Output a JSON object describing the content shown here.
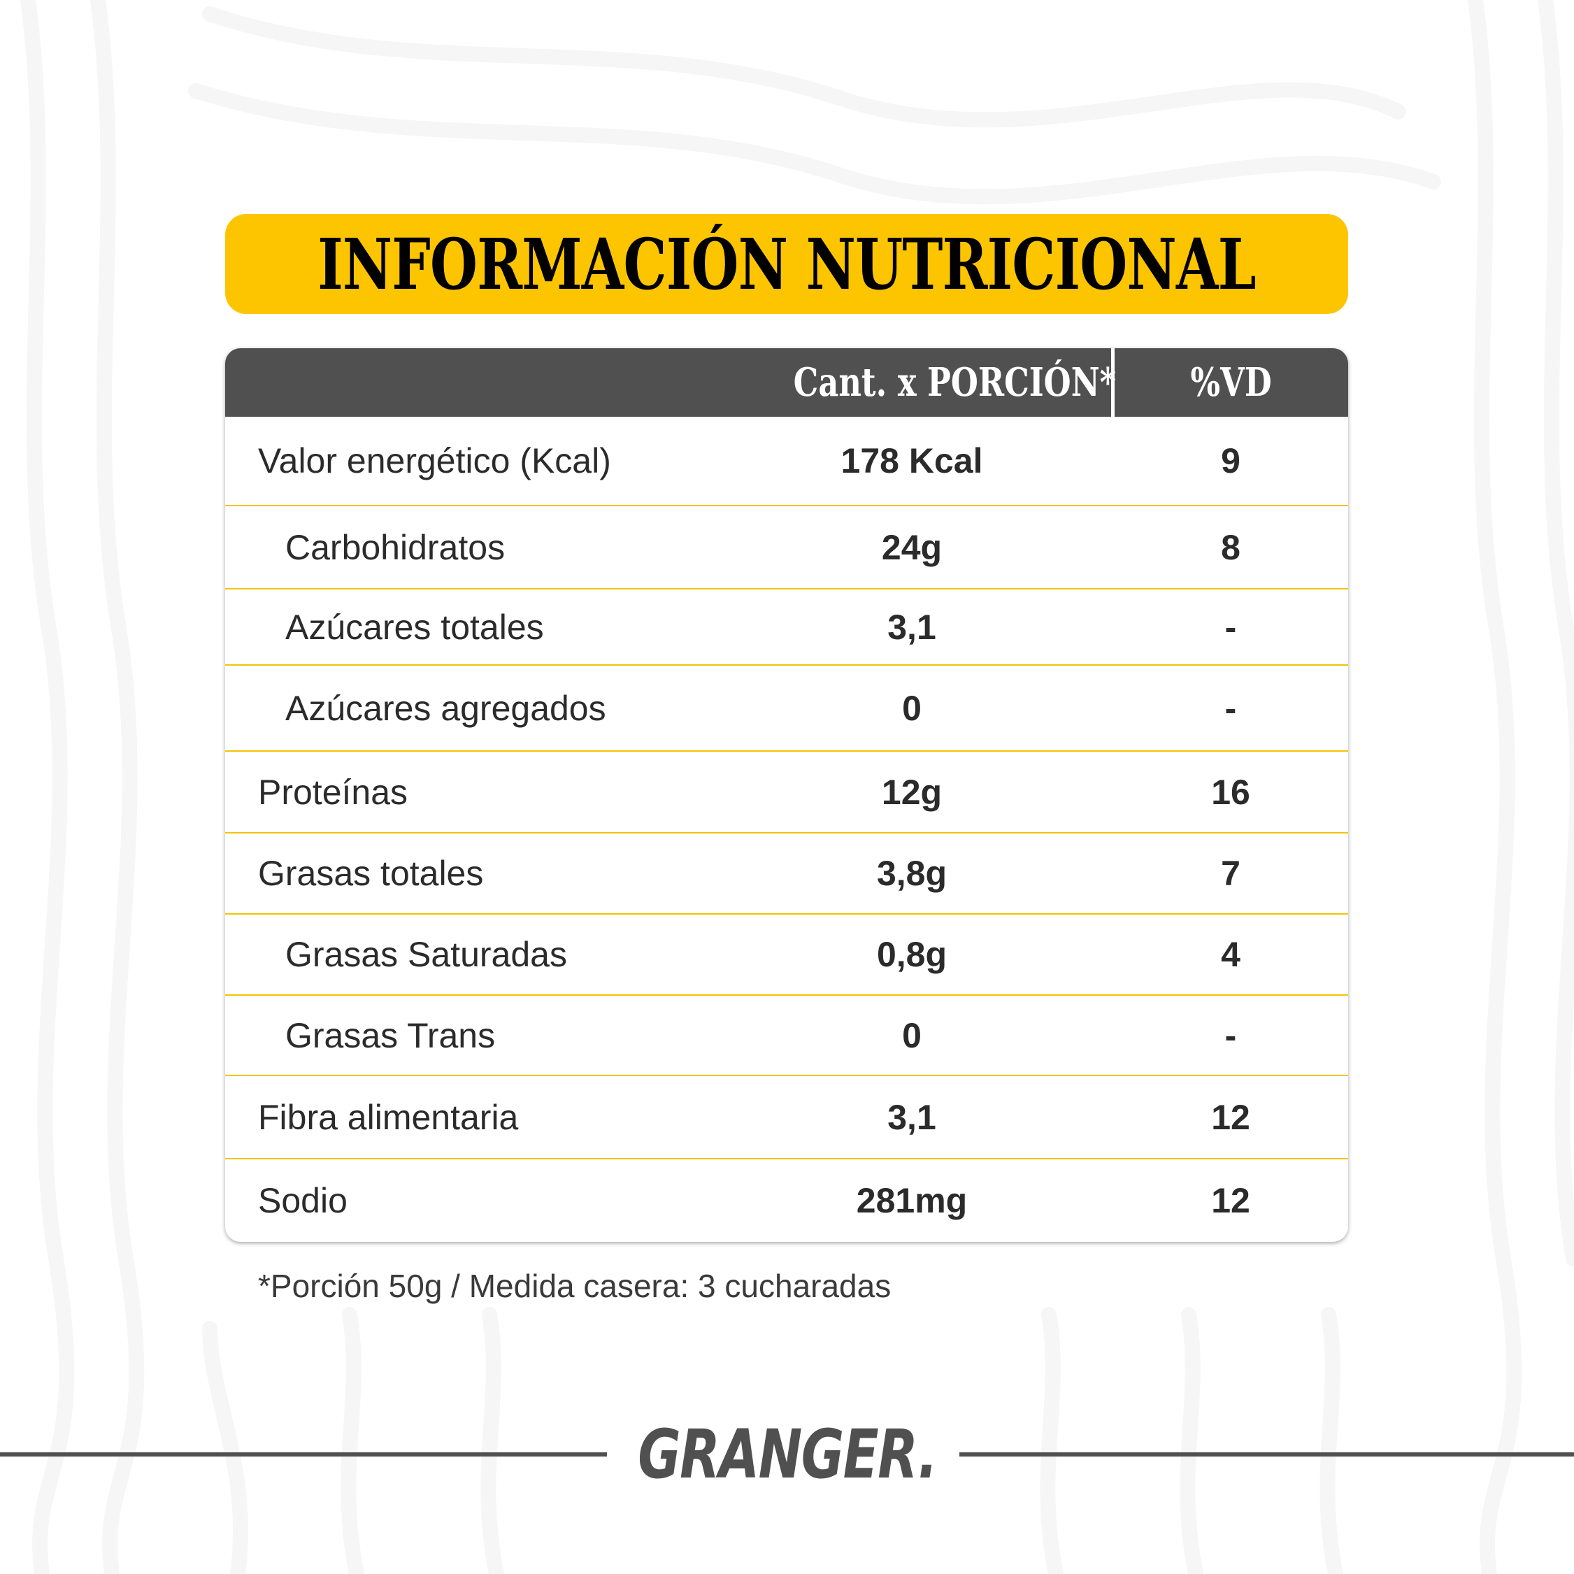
{
  "title": "INFORMACIÓN NUTRICIONAL",
  "colors": {
    "accent": "#fdc500",
    "header_bg": "#505050",
    "text": "#2b2b2b"
  },
  "table": {
    "headers": {
      "nutrient": "",
      "amount": "Cant. x PORCIÓN*",
      "dv": "%VD"
    },
    "rows": [
      {
        "label": "Valor energético (Kcal)",
        "amount": "178 Kcal",
        "dv": "9",
        "indent": false
      },
      {
        "label": "Carbohidratos",
        "amount": "24g",
        "dv": "8",
        "indent": true
      },
      {
        "label": "Azúcares totales",
        "amount": "3,1",
        "dv": "-",
        "indent": true
      },
      {
        "label": "Azúcares agregados",
        "amount": "0",
        "dv": "-",
        "indent": true
      },
      {
        "label": "Proteínas",
        "amount": "12g",
        "dv": "16",
        "indent": false
      },
      {
        "label": "Grasas totales",
        "amount": "3,8g",
        "dv": "7",
        "indent": false
      },
      {
        "label": "Grasas Saturadas",
        "amount": "0,8g",
        "dv": "4",
        "indent": true
      },
      {
        "label": "Grasas Trans",
        "amount": "0",
        "dv": "-",
        "indent": true
      },
      {
        "label": "Fibra alimentaria",
        "amount": "3,1",
        "dv": "12",
        "indent": false
      },
      {
        "label": "Sodio",
        "amount": "281mg",
        "dv": "12",
        "indent": false
      }
    ]
  },
  "footnote": "*Porción 50g / Medida casera: 3 cucharadas",
  "brand": "GRANGER."
}
